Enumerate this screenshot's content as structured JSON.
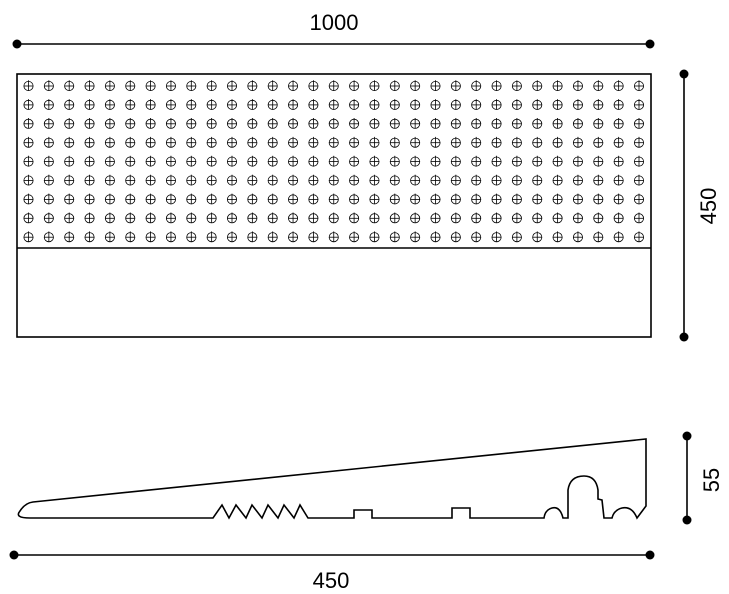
{
  "dimensions": {
    "top_width": "1000",
    "side_height": "450",
    "profile_height": "55",
    "profile_length": "450"
  },
  "stud_grid": {
    "rows": 9,
    "cols": 31
  },
  "colors": {
    "stroke": "#000000",
    "background": "#ffffff"
  }
}
